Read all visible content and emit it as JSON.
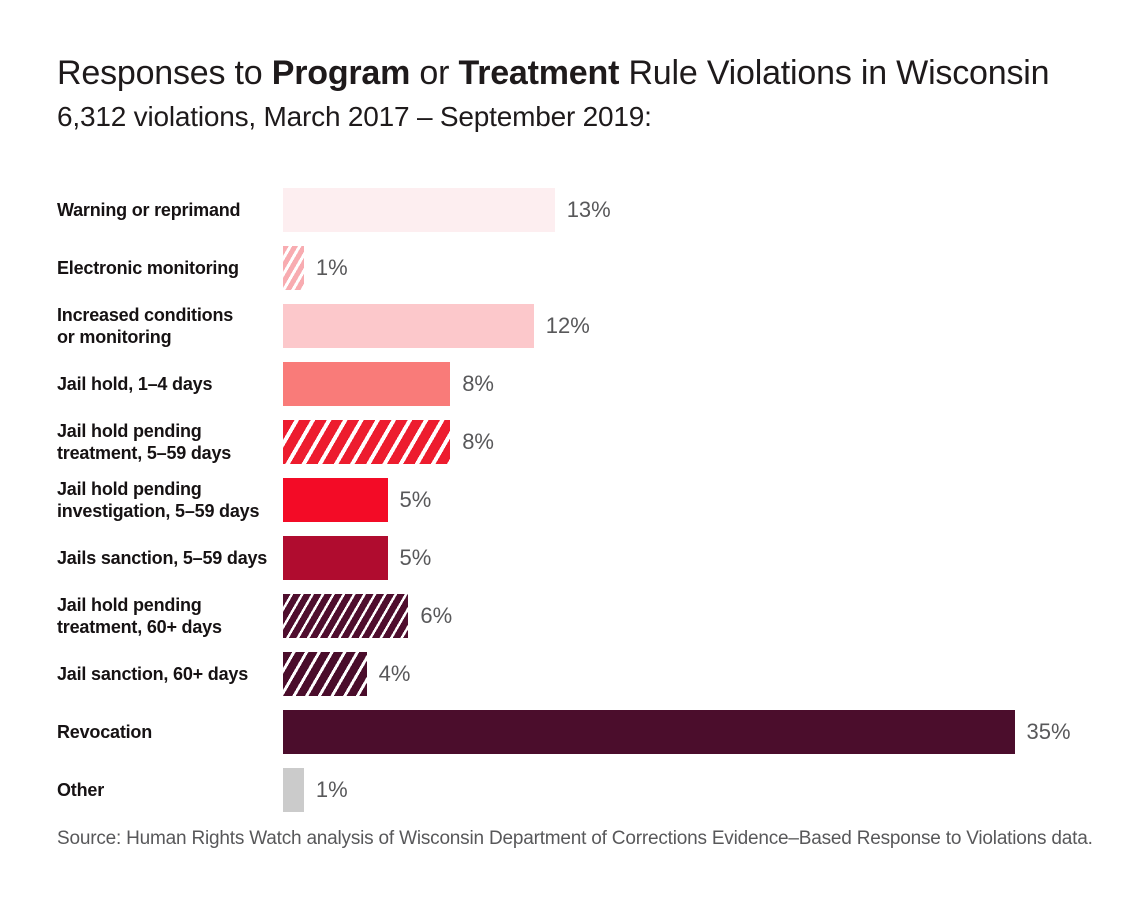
{
  "header": {
    "title_prefix": "Responses to ",
    "title_bold_1": "Program",
    "title_mid": " or ",
    "title_bold_2": "Treatment",
    "title_suffix": " Rule Violations in Wisconsin",
    "subtitle": "6,312 violations, March 2017 – September 2019:"
  },
  "chart_data": {
    "type": "bar",
    "orientation": "horizontal",
    "title": "Responses to Program or Treatment Rule Violations in Wisconsin",
    "subtitle": "6,312 violations, March 2017 – September 2019:",
    "unit": "percent",
    "xlim": [
      0,
      35
    ],
    "grid": false,
    "legend": false,
    "categories": [
      "Warning or reprimand",
      "Electronic monitoring",
      "Increased conditions or monitoring",
      "Jail hold, 1–4 days",
      "Jail hold pending treatment, 5–59 days",
      "Jail hold pending investigation, 5–59 days",
      "Jails sanction, 5–59 days",
      "Jail hold pending treatment, 60+ days",
      "Jail sanction, 60+ days",
      "Revocation",
      "Other"
    ],
    "values": [
      13,
      1,
      12,
      8,
      8,
      5,
      5,
      6,
      4,
      35,
      1
    ],
    "bars": [
      {
        "label": "Warning or reprimand",
        "value": 13,
        "display": "13%",
        "color": "#fdeef0",
        "hatch": false
      },
      {
        "label": "Electronic monitoring",
        "value": 1,
        "display": "1%",
        "color": "#f8acb1",
        "hatch": true,
        "hatch_period": 8,
        "hatch_stripe": 3
      },
      {
        "label": "Increased conditions\nor monitoring",
        "value": 12,
        "display": "12%",
        "color": "#fcc8cb",
        "hatch": false
      },
      {
        "label": "Jail hold, 1–4 days",
        "value": 8,
        "display": "8%",
        "color": "#f97b79",
        "hatch": false
      },
      {
        "label": "Jail hold pending\ntreatment, 5–59 days",
        "value": 8,
        "display": "8%",
        "color": "#ed1c2e",
        "hatch": true,
        "hatch_period": 14,
        "hatch_stripe": 4
      },
      {
        "label": "Jail hold pending\ninvestigation, 5–59 days",
        "value": 5,
        "display": "5%",
        "color": "#f30b26",
        "hatch": false
      },
      {
        "label": "Jails sanction, 5–59 days",
        "value": 5,
        "display": "5%",
        "color": "#b00c2f",
        "hatch": false
      },
      {
        "label": "Jail hold pending\ntreatment, 60+ days",
        "value": 6,
        "display": "6%",
        "color": "#4f0e2e",
        "hatch": true,
        "hatch_period": 9,
        "hatch_stripe": 2.5
      },
      {
        "label": "Jail sanction, 60+ days",
        "value": 4,
        "display": "4%",
        "color": "#4a0d2b",
        "hatch": true,
        "hatch_period": 11,
        "hatch_stripe": 3
      },
      {
        "label": "Revocation",
        "value": 35,
        "display": "35%",
        "color": "#4b0d2c",
        "hatch": false
      },
      {
        "label": "Other",
        "value": 1,
        "display": "1%",
        "color": "#cbcbcb",
        "hatch": false
      }
    ],
    "source": "Source: Human Rights Watch analysis of Wisconsin Department of Corrections Evidence–Based Response to Violations data."
  }
}
